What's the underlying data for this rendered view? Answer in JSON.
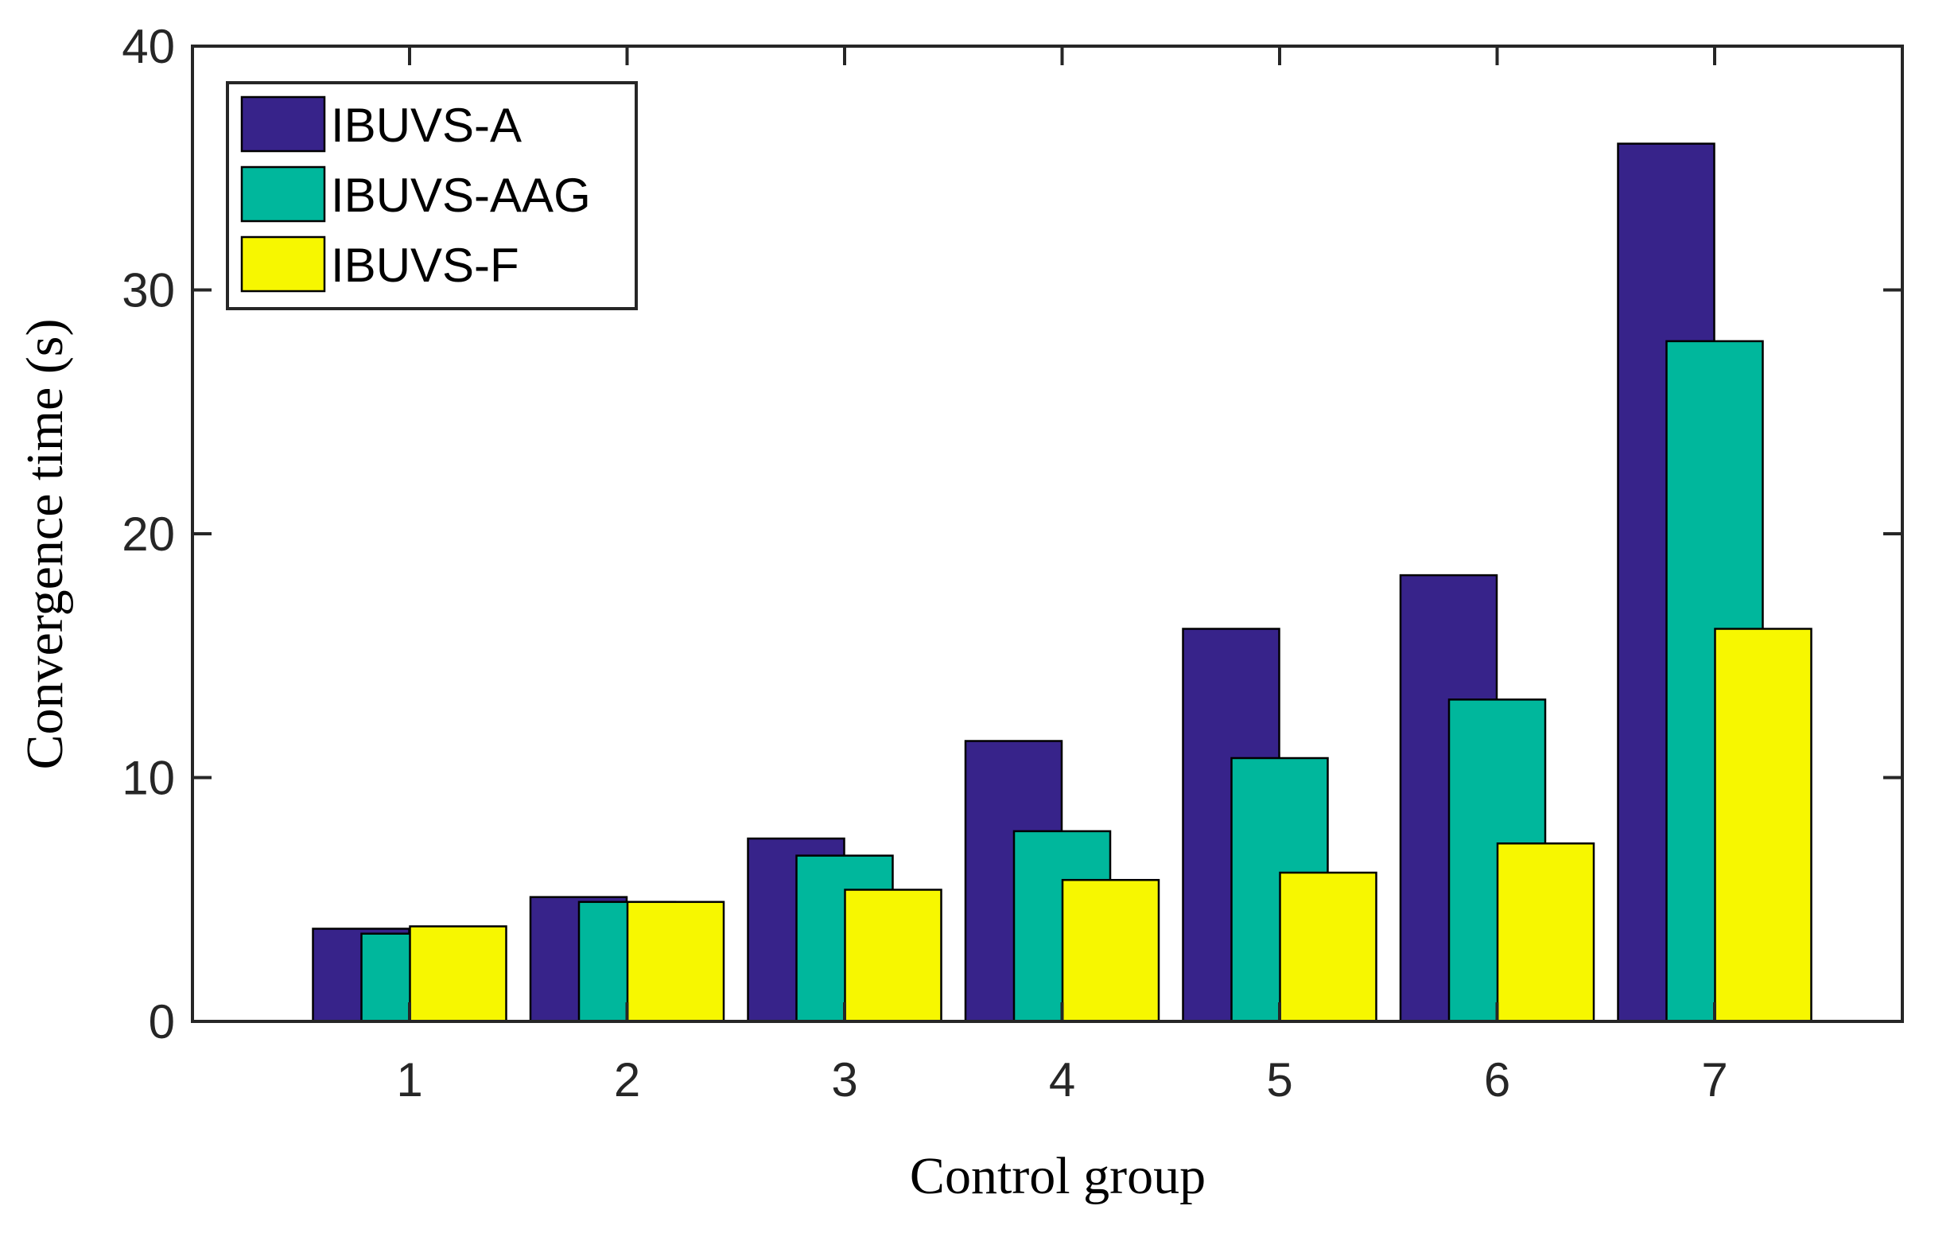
{
  "chart_data": {
    "type": "bar",
    "title": "",
    "xlabel": "Control group",
    "ylabel": "Convergence time (s)",
    "categories": [
      "1",
      "2",
      "3",
      "4",
      "5",
      "6",
      "7"
    ],
    "ylim": [
      0,
      40
    ],
    "yticks": [
      "0",
      "10",
      "20",
      "30",
      "40"
    ],
    "grid": false,
    "legend_position": "top-left",
    "series": [
      {
        "name": "IBUVS-A",
        "color": "#37238a",
        "values": [
          3.8,
          5.1,
          7.5,
          11.5,
          16.1,
          18.3,
          36.0
        ]
      },
      {
        "name": "IBUVS-AAG",
        "color": "#00b79c",
        "values": [
          3.6,
          4.9,
          6.8,
          7.8,
          10.8,
          13.2,
          27.9
        ]
      },
      {
        "name": "IBUVS-F",
        "color": "#f7f700",
        "values": [
          3.9,
          4.9,
          5.4,
          5.8,
          6.1,
          7.3,
          16.1
        ]
      }
    ]
  }
}
